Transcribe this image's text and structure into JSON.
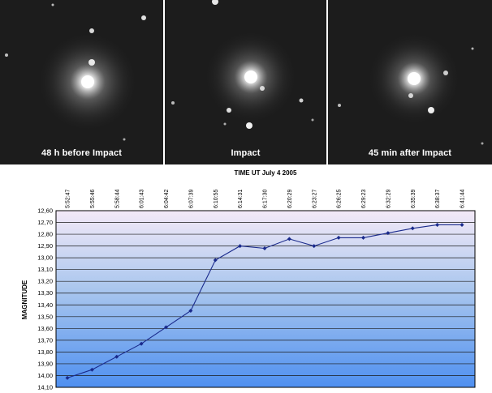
{
  "panels": [
    {
      "caption": "48 h before Impact"
    },
    {
      "caption": "Impact"
    },
    {
      "caption": "45 min after Impact"
    }
  ],
  "chart_data": {
    "type": "line",
    "title": "TIME UT July 4 2005",
    "xlabel": "",
    "ylabel": "MAGNITUDE",
    "categories": [
      "5:52:47",
      "5:55:46",
      "5:58:44",
      "6:01:43",
      "6:04:42",
      "6:07:39",
      "6:10:55",
      "6:14:31",
      "6:17:30",
      "6:20:29",
      "6:23:27",
      "6:26:25",
      "6:29:23",
      "6:32:29",
      "6:35:39",
      "6:38:37",
      "6:41:44"
    ],
    "y_ticks": [
      "12,60",
      "12,70",
      "12,80",
      "12,90",
      "13,00",
      "13,10",
      "13,20",
      "13,30",
      "13,40",
      "13,50",
      "13,60",
      "13,70",
      "13,80",
      "13,90",
      "14,00",
      "14,10"
    ],
    "ylim": [
      14.1,
      12.6
    ],
    "y_inverted": true,
    "series": [
      {
        "values": [
          14.02,
          13.95,
          13.84,
          13.73,
          13.59,
          13.45,
          13.02,
          12.9,
          12.92,
          12.84,
          12.9,
          12.83,
          12.83,
          12.79,
          12.75,
          12.72,
          12.72
        ]
      }
    ],
    "colors": {
      "line": "#1a2a8c",
      "bg_top": "#f3e9f7",
      "bg_bottom": "#4f90f0",
      "grid": "#1a1a1a"
    },
    "grid": true,
    "legend": "none"
  }
}
